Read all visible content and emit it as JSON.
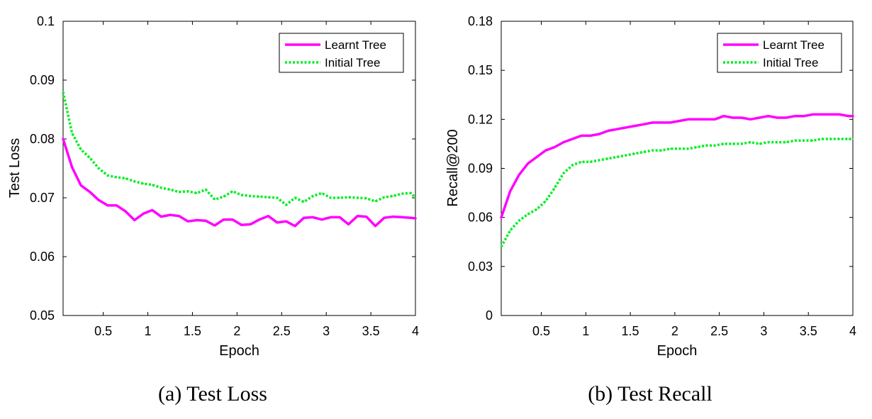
{
  "chart_data": [
    {
      "type": "line",
      "caption": "(a)  Test Loss",
      "xlabel": "Epoch",
      "ylabel": "Test Loss",
      "xlim": [
        0.05,
        4
      ],
      "ylim": [
        0.05,
        0.1
      ],
      "xticks": [
        0.5,
        1,
        1.5,
        2,
        2.5,
        3,
        3.5,
        4
      ],
      "xtick_labels": [
        "0.5",
        "1",
        "1.5",
        "2",
        "2.5",
        "3",
        "3.5",
        "4"
      ],
      "yticks": [
        0.05,
        0.06,
        0.07,
        0.08,
        0.09,
        0.1
      ],
      "ytick_labels": [
        "0.05",
        "0.06",
        "0.07",
        "0.08",
        "0.09",
        "0.1"
      ],
      "legend_position": "top-right",
      "series": [
        {
          "name": "Learnt Tree",
          "color": "#ff00ff",
          "style": "solid",
          "x": [
            0.05,
            0.15,
            0.25,
            0.35,
            0.45,
            0.55,
            0.65,
            0.75,
            0.85,
            0.95,
            1.05,
            1.15,
            1.25,
            1.35,
            1.45,
            1.55,
            1.65,
            1.75,
            1.85,
            1.95,
            2.05,
            2.15,
            2.25,
            2.35,
            2.45,
            2.55,
            2.65,
            2.75,
            2.85,
            2.95,
            3.05,
            3.15,
            3.25,
            3.35,
            3.45,
            3.55,
            3.65,
            3.75,
            3.85,
            3.95,
            4.0
          ],
          "y": [
            0.08,
            0.0752,
            0.0721,
            0.071,
            0.0696,
            0.0687,
            0.0687,
            0.0677,
            0.0662,
            0.0673,
            0.0679,
            0.0668,
            0.0671,
            0.0669,
            0.066,
            0.0662,
            0.0661,
            0.0653,
            0.0663,
            0.0663,
            0.0654,
            0.0655,
            0.0663,
            0.0669,
            0.0658,
            0.066,
            0.0652,
            0.0666,
            0.0667,
            0.0663,
            0.0667,
            0.0667,
            0.0655,
            0.0669,
            0.0668,
            0.0652,
            0.0666,
            0.0668,
            0.0667,
            0.0666,
            0.0665
          ]
        },
        {
          "name": "Initial Tree",
          "color": "#00ee22",
          "style": "dotted",
          "x": [
            0.05,
            0.15,
            0.25,
            0.35,
            0.45,
            0.55,
            0.65,
            0.75,
            0.85,
            0.95,
            1.05,
            1.15,
            1.25,
            1.35,
            1.45,
            1.55,
            1.65,
            1.75,
            1.85,
            1.95,
            2.05,
            2.15,
            2.25,
            2.35,
            2.45,
            2.55,
            2.65,
            2.75,
            2.85,
            2.95,
            3.05,
            3.15,
            3.25,
            3.35,
            3.45,
            3.55,
            3.65,
            3.75,
            3.85,
            3.95,
            4.0
          ],
          "y": [
            0.088,
            0.081,
            0.0782,
            0.0768,
            0.075,
            0.0738,
            0.0735,
            0.0733,
            0.0728,
            0.0724,
            0.0722,
            0.0717,
            0.0714,
            0.071,
            0.0711,
            0.0708,
            0.0714,
            0.0697,
            0.0702,
            0.0711,
            0.0705,
            0.0703,
            0.0702,
            0.0701,
            0.07,
            0.0688,
            0.07,
            0.0693,
            0.0703,
            0.0708,
            0.07,
            0.07,
            0.0701,
            0.07,
            0.0699,
            0.0694,
            0.0701,
            0.0703,
            0.0707,
            0.0708,
            0.07
          ]
        }
      ]
    },
    {
      "type": "line",
      "caption": "(b)  Test Recall",
      "xlabel": "Epoch",
      "ylabel": "Recall@200",
      "xlim": [
        0.05,
        4
      ],
      "ylim": [
        0,
        0.18
      ],
      "xticks": [
        0.5,
        1,
        1.5,
        2,
        2.5,
        3,
        3.5,
        4
      ],
      "xtick_labels": [
        "0.5",
        "1",
        "1.5",
        "2",
        "2.5",
        "3",
        "3.5",
        "4"
      ],
      "yticks": [
        0,
        0.03,
        0.06,
        0.09,
        0.12,
        0.15,
        0.18
      ],
      "ytick_labels": [
        "0",
        "0.03",
        "0.06",
        "0.09",
        "0.12",
        "0.15",
        "0.18"
      ],
      "legend_position": "top-right",
      "series": [
        {
          "name": "Learnt Tree",
          "color": "#ff00ff",
          "style": "solid",
          "x": [
            0.05,
            0.15,
            0.25,
            0.35,
            0.45,
            0.55,
            0.65,
            0.75,
            0.85,
            0.95,
            1.05,
            1.15,
            1.25,
            1.35,
            1.45,
            1.55,
            1.65,
            1.75,
            1.85,
            1.95,
            2.05,
            2.15,
            2.25,
            2.35,
            2.45,
            2.55,
            2.65,
            2.75,
            2.85,
            2.95,
            3.05,
            3.15,
            3.25,
            3.35,
            3.45,
            3.55,
            3.65,
            3.75,
            3.85,
            3.95,
            4.0
          ],
          "y": [
            0.06,
            0.076,
            0.086,
            0.093,
            0.097,
            0.101,
            0.103,
            0.106,
            0.108,
            0.11,
            0.11,
            0.111,
            0.113,
            0.114,
            0.115,
            0.116,
            0.117,
            0.118,
            0.118,
            0.118,
            0.119,
            0.12,
            0.12,
            0.12,
            0.12,
            0.122,
            0.121,
            0.121,
            0.12,
            0.121,
            0.122,
            0.121,
            0.121,
            0.122,
            0.122,
            0.123,
            0.123,
            0.123,
            0.123,
            0.122,
            0.122
          ]
        },
        {
          "name": "Initial Tree",
          "color": "#00ee22",
          "style": "dotted",
          "x": [
            0.05,
            0.15,
            0.25,
            0.35,
            0.45,
            0.55,
            0.65,
            0.75,
            0.85,
            0.95,
            1.05,
            1.15,
            1.25,
            1.35,
            1.45,
            1.55,
            1.65,
            1.75,
            1.85,
            1.95,
            2.05,
            2.15,
            2.25,
            2.35,
            2.45,
            2.55,
            2.65,
            2.75,
            2.85,
            2.95,
            3.05,
            3.15,
            3.25,
            3.35,
            3.45,
            3.55,
            3.65,
            3.75,
            3.85,
            3.95,
            4.0
          ],
          "y": [
            0.042,
            0.052,
            0.058,
            0.062,
            0.065,
            0.07,
            0.078,
            0.087,
            0.092,
            0.094,
            0.094,
            0.095,
            0.096,
            0.097,
            0.098,
            0.099,
            0.1,
            0.101,
            0.101,
            0.102,
            0.102,
            0.102,
            0.103,
            0.104,
            0.104,
            0.105,
            0.105,
            0.105,
            0.106,
            0.105,
            0.106,
            0.106,
            0.106,
            0.107,
            0.107,
            0.107,
            0.108,
            0.108,
            0.108,
            0.108,
            0.108
          ]
        }
      ]
    }
  ]
}
